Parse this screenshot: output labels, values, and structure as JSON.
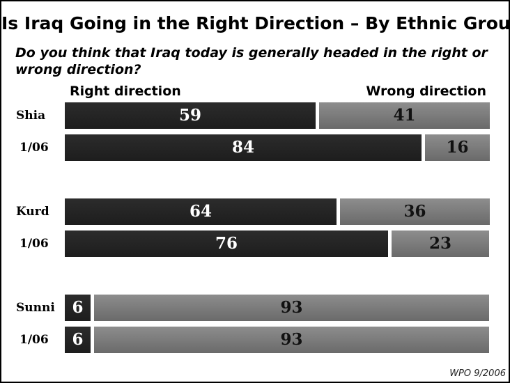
{
  "chart_data": {
    "type": "bar",
    "orientation": "horizontal",
    "stacked": true,
    "title": "Is Iraq Going in the Right Direction – By Ethnic Groups",
    "subtitle": "Do you think that Iraq today is generally headed in the right or wrong direction?",
    "legend": [
      "Right direction",
      "Wrong direction"
    ],
    "categories": [
      "Shia",
      "1/06",
      "Kurd",
      "1/06",
      "Sunni",
      "1/06"
    ],
    "series": [
      {
        "name": "Right direction",
        "values": [
          59,
          84,
          64,
          76,
          6,
          6
        ],
        "color": "#232323"
      },
      {
        "name": "Wrong direction",
        "values": [
          41,
          16,
          36,
          23,
          93,
          93
        ],
        "color": "#7d7d7d"
      }
    ],
    "xlim": [
      0,
      100
    ],
    "grid": false,
    "source": "WPO 9/2006"
  }
}
